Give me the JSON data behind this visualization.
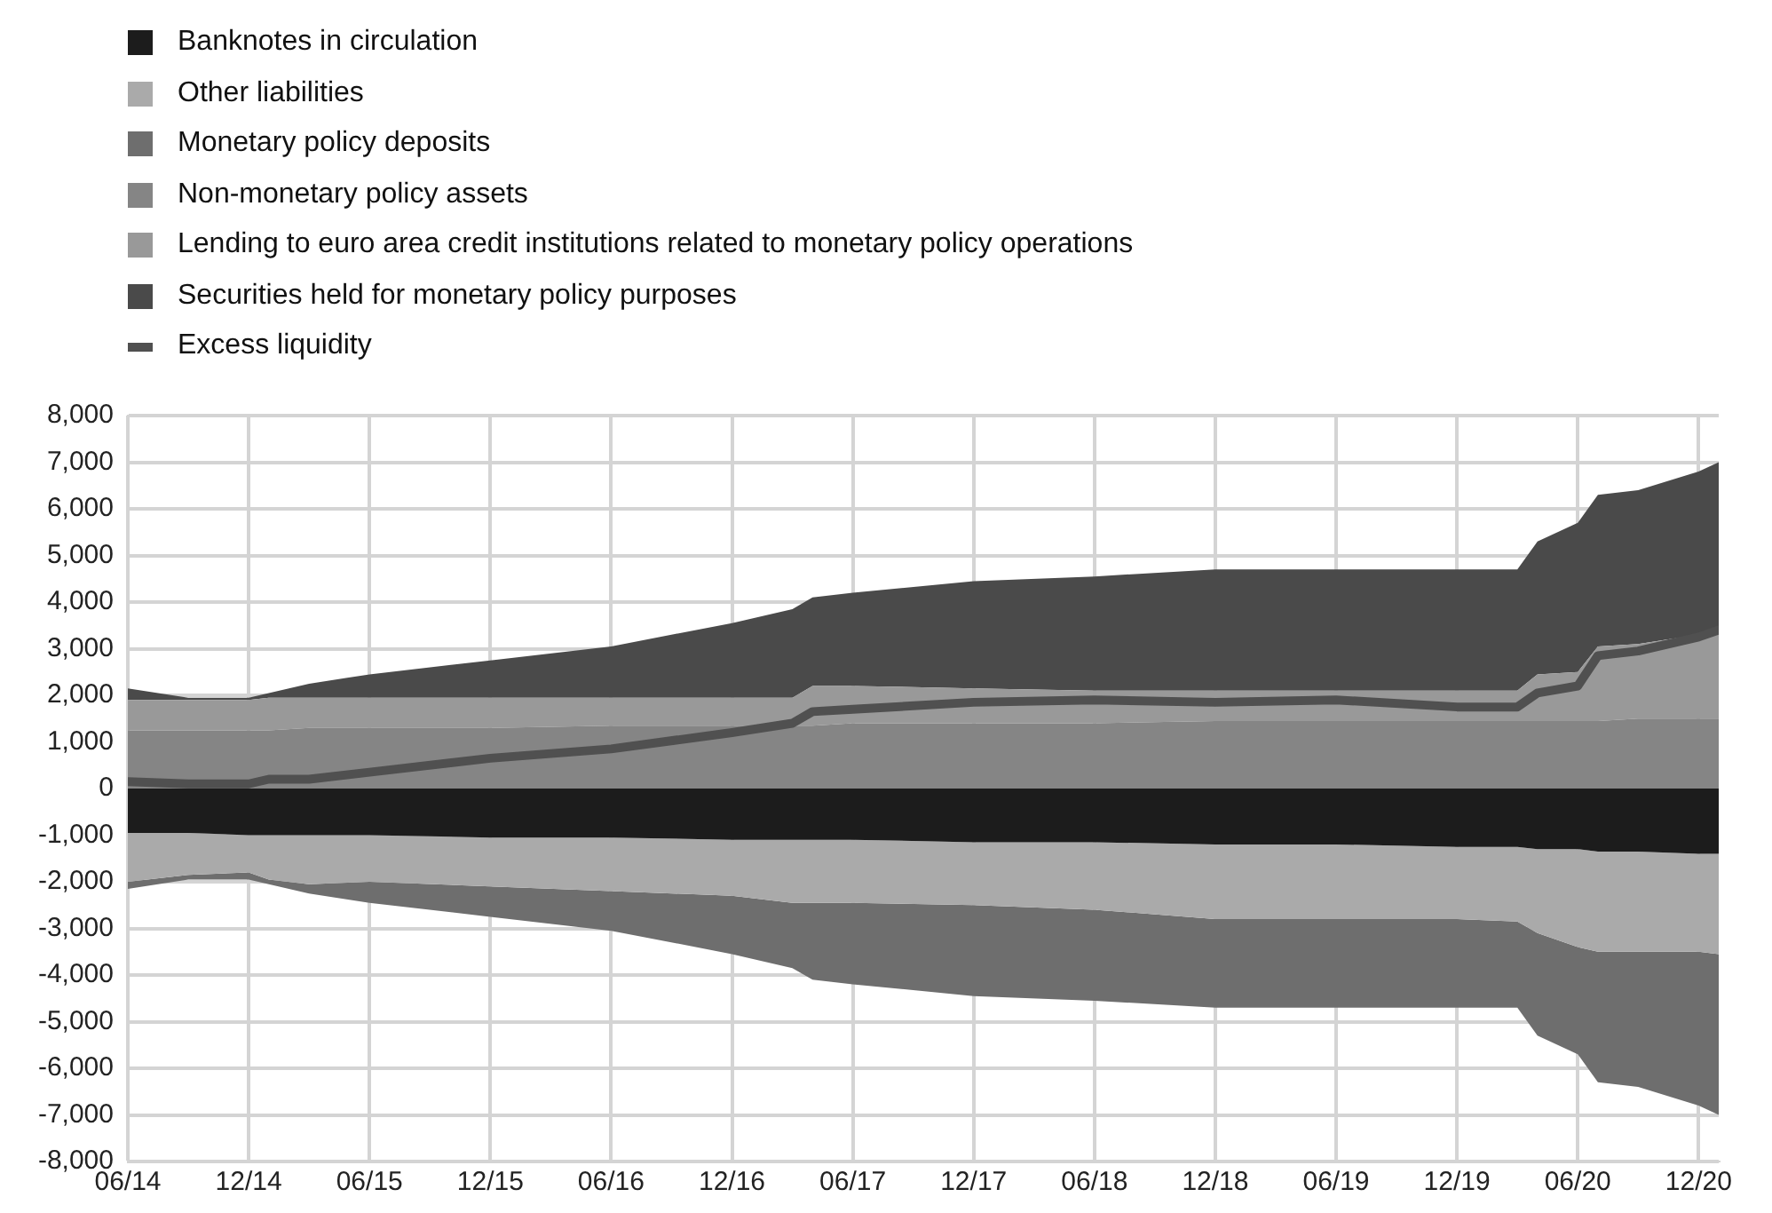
{
  "chart_data": [
    {
      "type": "area",
      "stacked": true,
      "legend": "top left",
      "grid": true,
      "x": [
        "2014-06",
        "2014-09",
        "2014-12",
        "2015-01",
        "2015-03",
        "2015-06",
        "2015-12",
        "2016-06",
        "2016-12",
        "2017-03",
        "2017-04",
        "2017-06",
        "2017-12",
        "2018-06",
        "2018-12",
        "2019-06",
        "2019-12",
        "2020-03",
        "2020-04",
        "2020-06",
        "2020-07",
        "2020-09",
        "2020-12",
        "2021-01"
      ],
      "series": [
        {
          "name": "Banknotes in circulation",
          "color": "#1c1c1c",
          "values": [
            -950,
            -950,
            -1000,
            -1000,
            -1000,
            -1000,
            -1050,
            -1050,
            -1100,
            -1100,
            -1100,
            -1100,
            -1150,
            -1150,
            -1200,
            -1200,
            -1250,
            -1250,
            -1300,
            -1300,
            -1350,
            -1350,
            -1400,
            -1400
          ]
        },
        {
          "name": "Other liabilities",
          "color": "#aaaaaa",
          "values": [
            -1050,
            -900,
            -800,
            -950,
            -1050,
            -1000,
            -1050,
            -1150,
            -1200,
            -1350,
            -1350,
            -1350,
            -1350,
            -1450,
            -1600,
            -1600,
            -1550,
            -1600,
            -1800,
            -2100,
            -2150,
            -2150,
            -2100,
            -2150
          ]
        },
        {
          "name": "Monetary policy deposits",
          "color": "#6e6e6e",
          "values": [
            -150,
            -100,
            -150,
            -100,
            -200,
            -450,
            -650,
            -850,
            -1250,
            -1400,
            -1650,
            -1750,
            -1950,
            -1950,
            -1900,
            -1900,
            -1900,
            -1850,
            -2200,
            -2300,
            -2800,
            -2900,
            -3300,
            -3450
          ]
        }
      ],
      "xlim": [
        "2014-06",
        "2021-01"
      ],
      "xticks": [
        {
          "value": "2014-06",
          "label": "06/14"
        },
        {
          "value": "2014-12",
          "label": "12/14"
        },
        {
          "value": "2015-06",
          "label": "06/15"
        },
        {
          "value": "2015-12",
          "label": "12/15"
        },
        {
          "value": "2016-06",
          "label": "06/16"
        },
        {
          "value": "2016-12",
          "label": "12/16"
        },
        {
          "value": "2017-06",
          "label": "06/17"
        },
        {
          "value": "2017-12",
          "label": "12/17"
        },
        {
          "value": "2018-06",
          "label": "06/18"
        },
        {
          "value": "2018-12",
          "label": "12/18"
        },
        {
          "value": "2019-06",
          "label": "06/19"
        },
        {
          "value": "2019-12",
          "label": "12/19"
        },
        {
          "value": "2020-06",
          "label": "06/20"
        },
        {
          "value": "2020-12",
          "label": "12/20"
        }
      ],
      "ylim": [
        -8000,
        8000
      ],
      "yticks": [
        {
          "value": -8000,
          "label": "-8,000"
        },
        {
          "value": -7000,
          "label": "-7,000"
        },
        {
          "value": -6000,
          "label": "-6,000"
        },
        {
          "value": -5000,
          "label": "-5,000"
        },
        {
          "value": -4000,
          "label": "-4,000"
        },
        {
          "value": -3000,
          "label": "-3,000"
        },
        {
          "value": -2000,
          "label": "-2,000"
        },
        {
          "value": -1000,
          "label": "-1,000"
        },
        {
          "value": 0,
          "label": "0"
        },
        {
          "value": 1000,
          "label": "1,000"
        },
        {
          "value": 2000,
          "label": "2,000"
        },
        {
          "value": 3000,
          "label": "3,000"
        },
        {
          "value": 4000,
          "label": "4,000"
        },
        {
          "value": 5000,
          "label": "5,000"
        },
        {
          "value": 6000,
          "label": "6,000"
        },
        {
          "value": 7000,
          "label": "7,000"
        },
        {
          "value": 8000,
          "label": "8,000"
        }
      ]
    },
    {
      "type": "area",
      "stacked": true,
      "legend": "top left",
      "tick_labels": false,
      "x": [
        "2014-06",
        "2014-09",
        "2014-12",
        "2015-01",
        "2015-03",
        "2015-06",
        "2015-12",
        "2016-06",
        "2016-12",
        "2017-03",
        "2017-04",
        "2017-06",
        "2017-12",
        "2018-06",
        "2018-12",
        "2019-06",
        "2019-12",
        "2020-03",
        "2020-04",
        "2020-06",
        "2020-07",
        "2020-09",
        "2020-12",
        "2021-01"
      ],
      "series": [
        {
          "name": "Non-monetary policy assets",
          "color": "#858585",
          "values": [
            1250,
            1250,
            1250,
            1250,
            1300,
            1300,
            1300,
            1350,
            1350,
            1350,
            1350,
            1400,
            1400,
            1400,
            1450,
            1450,
            1450,
            1450,
            1450,
            1450,
            1450,
            1500,
            1500,
            1500
          ]
        },
        {
          "name": "Lending to euro area credit institutions related to monetary policy operations",
          "color": "#999999",
          "values": [
            650,
            650,
            650,
            700,
            650,
            650,
            650,
            600,
            600,
            600,
            850,
            800,
            750,
            700,
            650,
            650,
            650,
            650,
            1000,
            1050,
            1600,
            1600,
            1800,
            1900
          ]
        },
        {
          "name": "Securities held for monetary policy purposes",
          "color": "#4a4a4a",
          "values": [
            250,
            50,
            50,
            100,
            300,
            500,
            800,
            1100,
            1600,
            1900,
            1900,
            2000,
            2300,
            2450,
            2600,
            2600,
            2600,
            2600,
            2850,
            3200,
            3250,
            3300,
            3500,
            3600
          ]
        },
        {
          "name": "Excess liquidity",
          "type": "line",
          "color": "#505050",
          "values": [
            150,
            100,
            100,
            200,
            200,
            350,
            650,
            850,
            1200,
            1400,
            1650,
            1700,
            1850,
            1900,
            1850,
            1900,
            1750,
            1750,
            2050,
            2200,
            2850,
            2950,
            3250,
            3400
          ]
        }
      ],
      "xlim": [
        "2014-06",
        "2021-01"
      ],
      "ylim": [
        -8000,
        8000
      ]
    }
  ]
}
